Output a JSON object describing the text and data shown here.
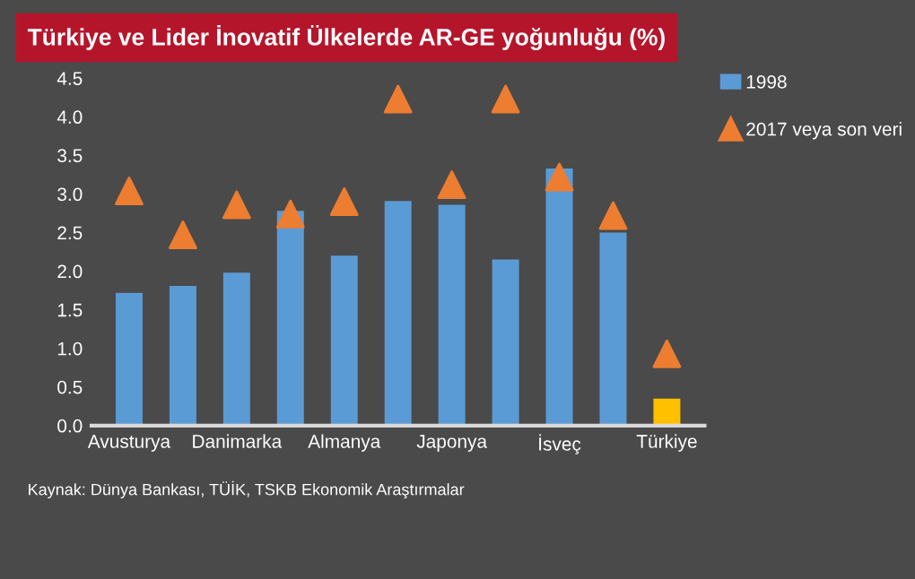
{
  "chart_data": {
    "type": "bar",
    "title": "Türkiye ve Lider İnovatif Ülkelerde AR-GE yoğunluğu (%)",
    "categories": [
      "Avusturya",
      null,
      "Danimarka",
      null,
      "Almanya",
      null,
      "Japonya",
      null,
      "İsveç",
      null,
      "Türkiye"
    ],
    "series": [
      {
        "name": "1998",
        "color": "#5b9bd5",
        "colors": [
          "#5b9bd5",
          "#5b9bd5",
          "#5b9bd5",
          "#5b9bd5",
          "#5b9bd5",
          "#5b9bd5",
          "#5b9bd5",
          "#5b9bd5",
          "#5b9bd5",
          "#5b9bd5",
          "#ffc000"
        ],
        "values": [
          1.72,
          1.81,
          1.98,
          2.78,
          2.2,
          2.91,
          2.86,
          2.15,
          3.33,
          2.5,
          0.35
        ]
      },
      {
        "name": "2017 veya son veri",
        "type": "scatter",
        "marker": "triangle",
        "color": "#ed7d31",
        "values": [
          3.04,
          2.47,
          2.86,
          2.74,
          2.9,
          4.23,
          3.12,
          4.23,
          3.22,
          2.72,
          0.93
        ]
      }
    ],
    "ylim": [
      0,
      4.5
    ],
    "yticks": [
      {
        "value": 0,
        "label": "0.0"
      },
      {
        "value": 0.5,
        "label": "0.5"
      },
      {
        "value": 1,
        "label": "1.0"
      },
      {
        "value": 1.5,
        "label": "1.5"
      },
      {
        "value": 2,
        "label": "2.0"
      },
      {
        "value": 2.5,
        "label": "2.5"
      },
      {
        "value": 3,
        "label": "3.0"
      },
      {
        "value": 3.5,
        "label": "3.5"
      },
      {
        "value": 4,
        "label": "4.0"
      },
      {
        "value": 4.5,
        "label": "4.5"
      }
    ],
    "legend": "top right",
    "annotations": [
      "Kaynak: Dünya Bankası, TÜİK, TSKB Ekonomik Araştırmalar"
    ]
  }
}
